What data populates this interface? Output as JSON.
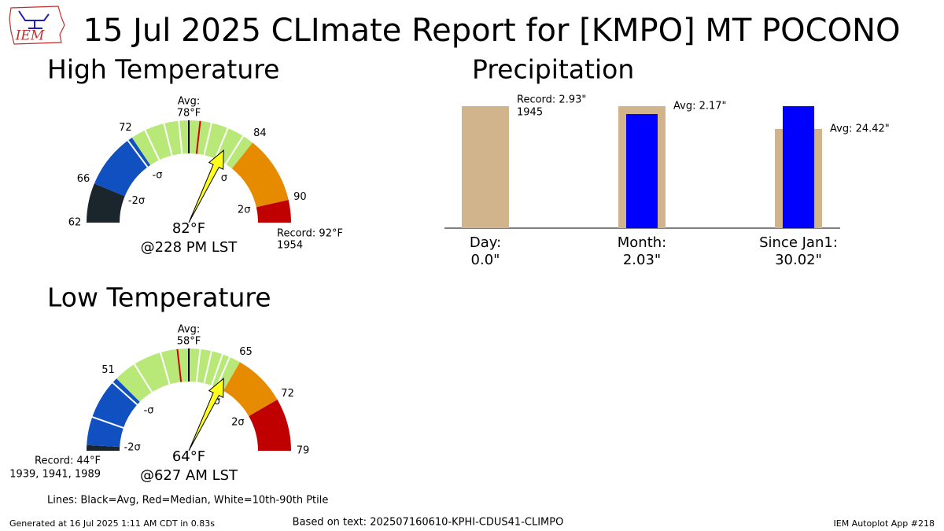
{
  "title": "15 Jul 2025 CLImate Report for [KMPO] MT POCONO",
  "logo_text": "IEM",
  "chart_data": [
    {
      "type": "gauge",
      "title": "High Temperature",
      "band_edges": [
        62,
        66,
        72,
        84,
        90,
        92
      ],
      "band_colors": [
        "#1b262c",
        "#1050c0",
        "#b8e878",
        "#e68a00",
        "#c00000"
      ],
      "ticks": [
        62,
        66,
        72,
        84,
        90
      ],
      "sigma_labels": [
        "-2σ",
        "-σ",
        "σ",
        "2σ"
      ],
      "avg": 78,
      "avg_title": "Avg:",
      "avg_label": "78°F",
      "median": 79,
      "percentiles": [
        71.5,
        73.5,
        75.5,
        77,
        80,
        81.5,
        83
      ],
      "value": 82,
      "value_label": "82°F",
      "time_label": "@228 PM LST",
      "record_label": "Record: 92°F",
      "record_years": "1954"
    },
    {
      "type": "gauge",
      "title": "Low Temperature",
      "band_edges": [
        44,
        44.5,
        51,
        65,
        72,
        79
      ],
      "band_colors": [
        "#1b262c",
        "#1050c0",
        "#b8e878",
        "#e68a00",
        "#c00000"
      ],
      "ticks": [
        51,
        65,
        72,
        79
      ],
      "sigma_labels": [
        "-2σ",
        "-σ",
        "σ",
        "2σ"
      ],
      "avg": 58,
      "avg_title": "Avg:",
      "avg_label": "58°F",
      "median": 57,
      "percentiles": [
        47,
        50.5,
        53,
        55.5,
        59.5,
        61,
        62.5,
        63.5
      ],
      "value": 64,
      "value_label": "64°F",
      "time_label": "@627 AM LST",
      "record_label": "Record: 44°F",
      "record_years": "1939, 1941, 1989"
    },
    {
      "type": "bar",
      "title": "Precipitation",
      "categories": [
        "Day:",
        "Month:",
        "Since Jan1:"
      ],
      "series": [
        {
          "color": "#d2b48c",
          "values": [
            2.93,
            2.17,
            24.42
          ],
          "value_labels": [
            "Record: 2.93\"",
            "Avg: 2.17\"",
            "Avg: 24.42\""
          ]
        },
        {
          "color": "#0000ff",
          "values": [
            0.0,
            2.03,
            30.02
          ],
          "value_labels": [
            "0.0\"",
            "2.03\"",
            "30.02\""
          ]
        }
      ],
      "record_year": "1945"
    }
  ],
  "note": "Lines: Black=Avg, Red=Median, White=10th-90th Ptile",
  "footer": {
    "generated": "Generated at 16 Jul 2025 1:11 AM CDT in 0.83s",
    "source": "Based on text: 202507160610-KPHI-CDUS41-CLIMPO",
    "app": "IEM Autoplot App #218"
  }
}
